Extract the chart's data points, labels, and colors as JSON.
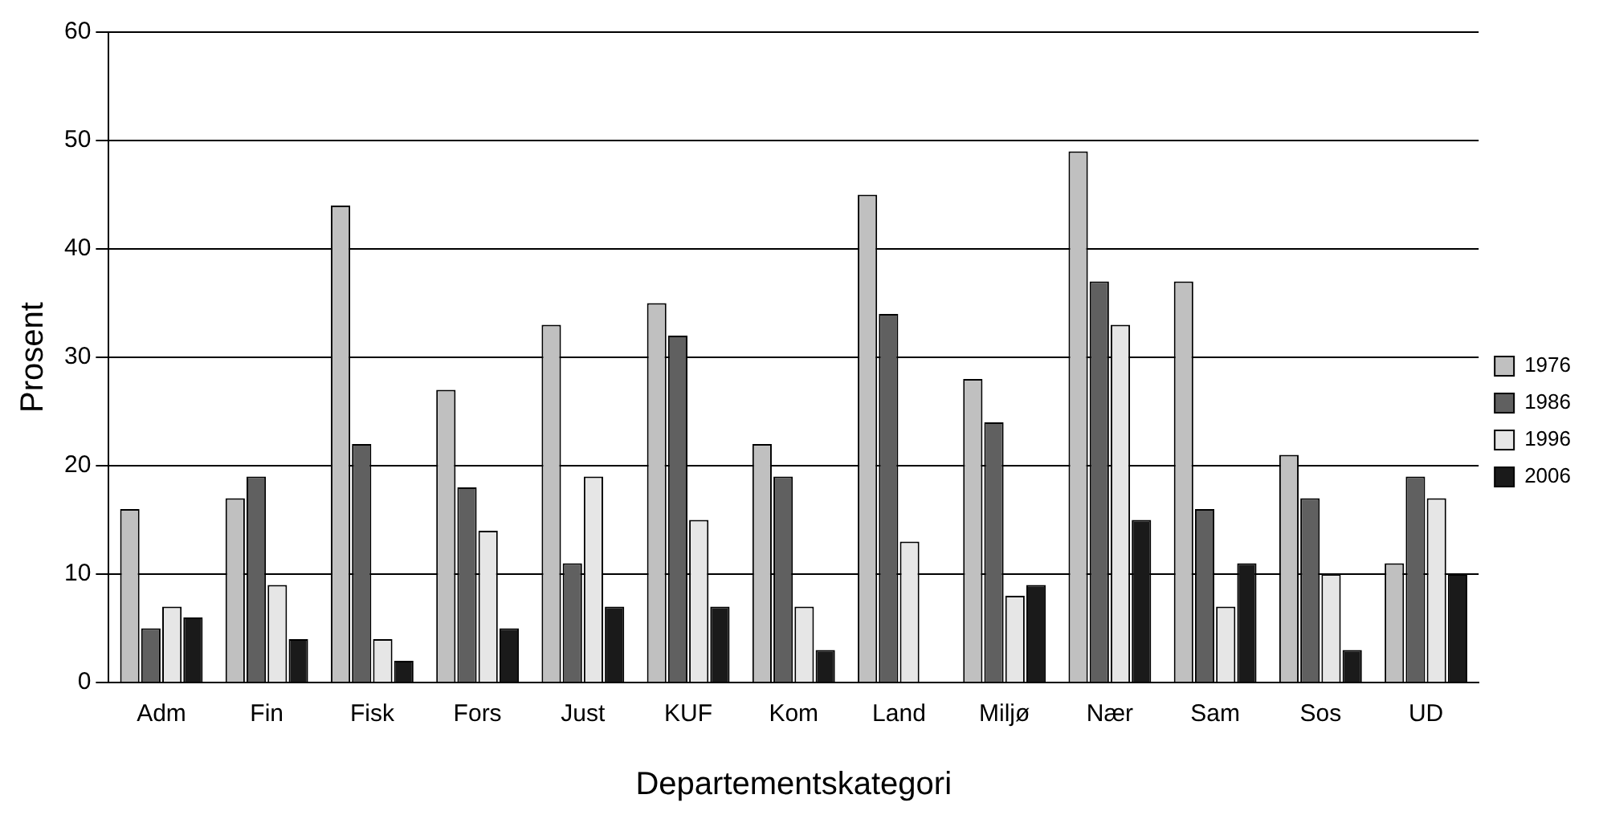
{
  "chart_data": {
    "type": "bar",
    "xlabel": "Departementskategori",
    "ylabel": "Prosent",
    "categories": [
      "Adm",
      "Fin",
      "Fisk",
      "Fors",
      "Just",
      "KUF",
      "Kom",
      "Land",
      "Miljø",
      "Nær",
      "Sam",
      "Sos",
      "UD"
    ],
    "series": [
      {
        "name": "1976",
        "color": "#c0c0c0",
        "values": [
          16,
          17,
          44,
          27,
          33,
          35,
          22,
          45,
          28,
          49,
          37,
          21,
          11
        ]
      },
      {
        "name": "1986",
        "color": "#606060",
        "values": [
          5,
          19,
          22,
          18,
          11,
          32,
          19,
          34,
          24,
          37,
          16,
          17,
          19
        ]
      },
      {
        "name": "1996",
        "color": "#e6e6e6",
        "values": [
          7,
          9,
          4,
          14,
          19,
          15,
          7,
          13,
          8,
          33,
          7,
          10,
          17
        ]
      },
      {
        "name": "2006",
        "color": "#1a1a1a",
        "values": [
          6,
          4,
          2,
          5,
          7,
          7,
          3,
          0,
          9,
          15,
          11,
          3,
          10
        ]
      }
    ],
    "ylim": [
      0,
      60
    ],
    "yticks": [
      0,
      10,
      20,
      30,
      40,
      50,
      60
    ],
    "grid": "y",
    "legend": "right"
  }
}
